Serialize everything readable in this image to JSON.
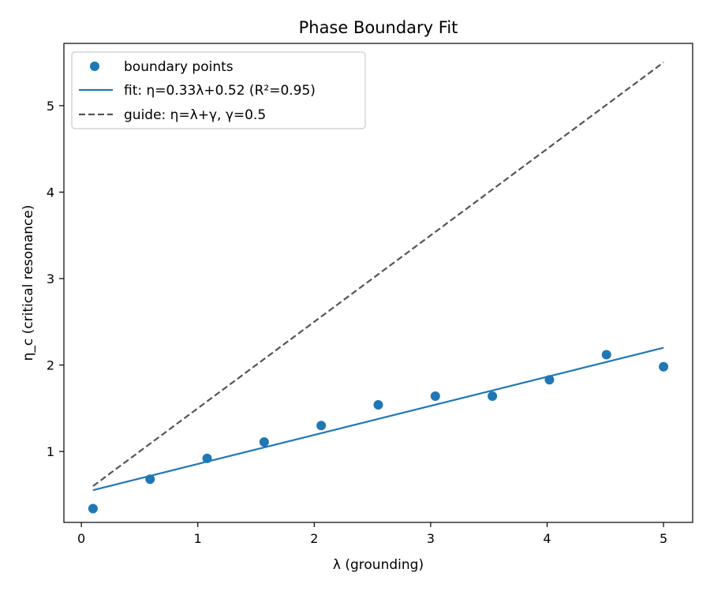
{
  "chart_data": {
    "type": "scatter",
    "title": "Phase Boundary Fit",
    "xlabel": "λ (grounding)",
    "ylabel": "η_c (critical resonance)",
    "xlim": [
      -0.15,
      5.25
    ],
    "ylim": [
      0.18,
      5.72
    ],
    "xticks": [
      0,
      1,
      2,
      3,
      4,
      5
    ],
    "yticks": [
      1,
      2,
      3,
      4,
      5
    ],
    "grid": false,
    "legend_position": "top-left",
    "series": [
      {
        "name": "boundary points",
        "kind": "scatter",
        "color": "#1f77b4",
        "x": [
          0.1,
          0.59,
          1.08,
          1.57,
          2.06,
          2.55,
          3.04,
          3.53,
          4.02,
          4.51,
          5.0
        ],
        "y": [
          0.34,
          0.68,
          0.92,
          1.11,
          1.3,
          1.54,
          1.64,
          1.64,
          1.83,
          2.12,
          1.98
        ]
      },
      {
        "name": "fit: η=0.33λ+0.52 (R²=0.95)",
        "kind": "line",
        "style": "solid",
        "color": "#1f77b4",
        "x": [
          0.1,
          5.0
        ],
        "y": [
          0.553,
          2.2
        ]
      },
      {
        "name": "guide: η=λ+γ, γ=0.5",
        "kind": "line",
        "style": "dashed",
        "color": "#555555",
        "x": [
          0.1,
          5.0
        ],
        "y": [
          0.6,
          5.5
        ]
      }
    ]
  }
}
